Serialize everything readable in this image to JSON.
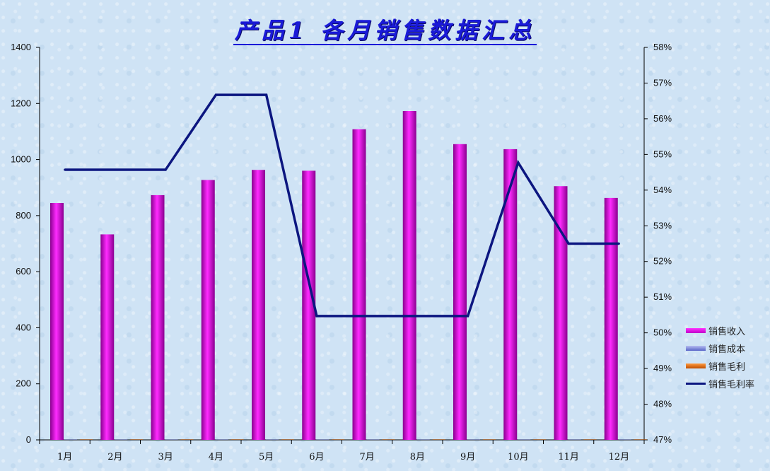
{
  "chart_data": {
    "type": "bar",
    "title": "产品1  各月销售数据汇总",
    "categories": [
      "1月",
      "2月",
      "3月",
      "4月",
      "5月",
      "6月",
      "7月",
      "8月",
      "9月",
      "10月",
      "11月",
      "12月"
    ],
    "ylim": [
      0,
      1400
    ],
    "y2lim": [
      0.47,
      0.58
    ],
    "y_ticks": [
      "0",
      "200",
      "400",
      "600",
      "800",
      "1000",
      "1200",
      "1400"
    ],
    "y2_ticks": [
      "47%",
      "48%",
      "49%",
      "50%",
      "51%",
      "52%",
      "53%",
      "54%",
      "55%",
      "56%",
      "57%",
      "58%"
    ],
    "series": [
      {
        "name": "销售收入",
        "type": "bar",
        "axis": "left",
        "color": "#d400d8",
        "values": [
          845,
          733,
          873,
          927,
          963,
          960,
          1108,
          1173,
          1055,
          1037,
          905,
          863
        ]
      },
      {
        "name": "销售成本",
        "type": "bar",
        "axis": "left",
        "color": "#8c95e0",
        "values": [
          0,
          0,
          0,
          0,
          0,
          0,
          0,
          0,
          0,
          0,
          0,
          0
        ]
      },
      {
        "name": "销售毛利",
        "type": "bar",
        "axis": "left",
        "color": "#e06a10",
        "values": [
          0,
          0,
          0,
          0,
          0,
          0,
          0,
          0,
          0,
          0,
          0,
          0
        ]
      },
      {
        "name": "销售毛利率",
        "type": "line",
        "axis": "right",
        "color": "#0c1680",
        "values": [
          0.5457,
          0.5457,
          0.5457,
          0.5667,
          0.5667,
          0.5047,
          0.5047,
          0.5047,
          0.5047,
          0.5477,
          0.525,
          0.525
        ]
      }
    ],
    "legend_position": "right"
  }
}
